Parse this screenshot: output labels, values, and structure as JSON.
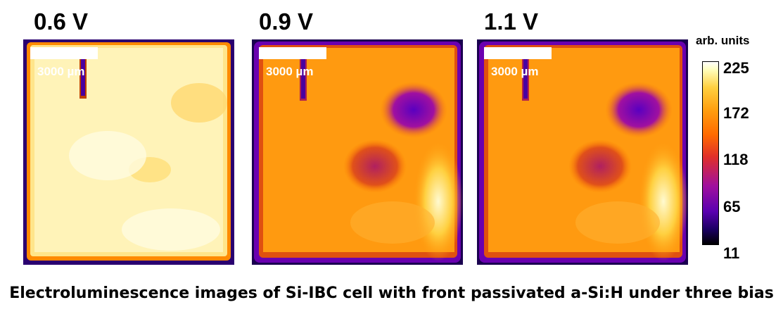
{
  "panels": [
    {
      "bias": "0.6 V",
      "scale_label": "3000 µm"
    },
    {
      "bias": "0.9 V",
      "scale_label": "3000 µm"
    },
    {
      "bias": "1.1 V",
      "scale_label": "3000 µm"
    }
  ],
  "colorbar": {
    "unit": "arb. units",
    "ticks": [
      "225",
      "172",
      "118",
      "65",
      "11"
    ],
    "colors": [
      "#ffffff",
      "#ffd040",
      "#ff6a00",
      "#e0302a",
      "#a0109e",
      "#5a00b0",
      "#000000"
    ]
  },
  "caption": "Electroluminescence images of Si-IBC cell with front passivated a-Si:H under three bias"
}
